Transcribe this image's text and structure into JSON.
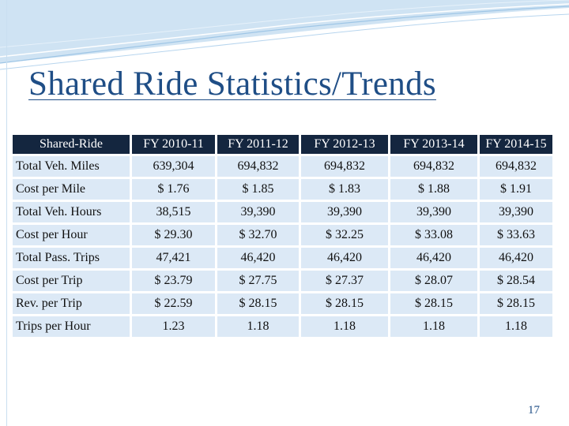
{
  "slide": {
    "title": "Shared Ride Statistics/Trends",
    "page_number": "17"
  },
  "table": {
    "headers": [
      "Shared-Ride",
      "FY 2010-11",
      "FY 2011-12",
      "FY 2012-13",
      "FY 2013-14",
      "FY 2014-15"
    ],
    "rows": [
      [
        "Total Veh. Miles",
        "639,304",
        "694,832",
        "694,832",
        "694,832",
        "694,832"
      ],
      [
        "Cost per Mile",
        "$ 1.76",
        "$ 1.85",
        "$ 1.83",
        "$ 1.88",
        "$ 1.91"
      ],
      [
        "Total Veh. Hours",
        "38,515",
        "39,390",
        "39,390",
        "39,390",
        "39,390"
      ],
      [
        "Cost per Hour",
        "$ 29.30",
        "$ 32.70",
        "$ 32.25",
        "$ 33.08",
        "$ 33.63"
      ],
      [
        "Total Pass. Trips",
        "47,421",
        "46,420",
        "46,420",
        "46,420",
        "46,420"
      ],
      [
        "Cost per Trip",
        "$ 23.79",
        "$ 27.75",
        "$ 27.37",
        "$ 28.07",
        "$ 28.54"
      ],
      [
        "Rev. per Trip",
        "$ 22.59",
        "$ 28.15",
        "$ 28.15",
        "$ 28.15",
        "$ 28.15"
      ],
      [
        "Trips per Hour",
        "1.23",
        "1.18",
        "1.18",
        "1.18",
        "1.18"
      ]
    ]
  },
  "colors": {
    "title": "#1f4e86",
    "header_bg": "#14263f",
    "cell_bg": "#dce9f6"
  }
}
